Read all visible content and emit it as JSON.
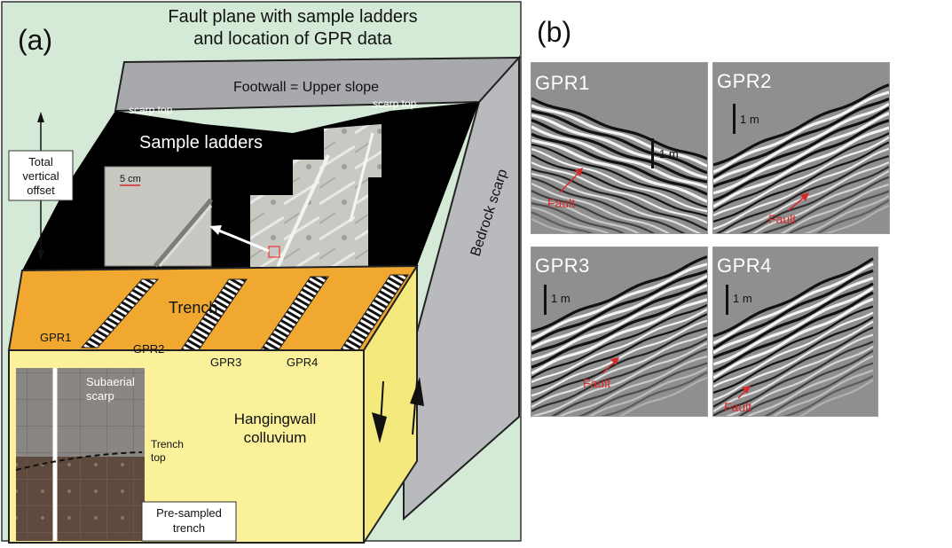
{
  "panel_a": {
    "panel_label": "(a)",
    "title_line1": "Fault plane with sample ladders",
    "title_line2": "and location of GPR data",
    "footwall_label": "Footwall = Upper slope",
    "scarp_top_left": "scarp top",
    "scarp_top_right": "scarp top",
    "sample_ladders_label": "Sample ladders",
    "offset_label_line1": "Total",
    "offset_label_line2": "vertical",
    "offset_label_line3": "offset",
    "inset_scale_label": "5 cm",
    "bedrock_scarp_label": "Bedrock scarp",
    "trench_label": "Trench",
    "gpr_lines": [
      "GPR1",
      "GPR2",
      "GPR3",
      "GPR4"
    ],
    "subaerial_label_line1": "Subaerial",
    "subaerial_label_line2": "scarp",
    "trench_top_line1": "Trench",
    "trench_top_line2": "top",
    "hangingwall_line1": "Hangingwall",
    "hangingwall_line2": "colluvium",
    "presampled_line1": "Pre-sampled",
    "presampled_line2": "trench",
    "colors": {
      "background": "#d4ead6",
      "footwall_top": "#a7a9ac",
      "fault_plane": "#000000",
      "trench_floor": "#f0a830",
      "hangingwall": "#faf19a",
      "bedrock_side": "#b8babd",
      "fault_marker": "#d62a2a"
    }
  },
  "panel_b": {
    "panel_label": "(b)",
    "tiles": [
      {
        "name": "GPR1",
        "scale": "1 m",
        "fault": "Fault"
      },
      {
        "name": "GPR2",
        "scale": "1 m",
        "fault": "Fault"
      },
      {
        "name": "GPR3",
        "scale": "1 m",
        "fault": "Fault"
      },
      {
        "name": "GPR4",
        "scale": "1 m",
        "fault": "Fault"
      }
    ]
  }
}
